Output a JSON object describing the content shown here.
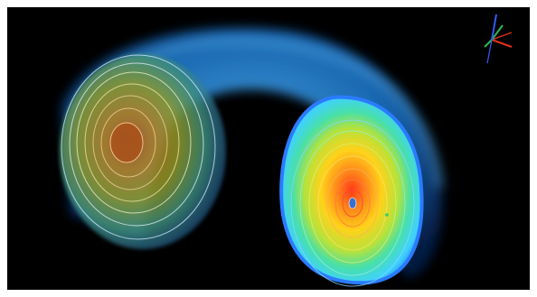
{
  "viewer": {
    "background_color": "#000000",
    "page_border_color": "#ffffff",
    "object": "torus-volume-render-with-contour-slices",
    "colormap": [
      "#1a3cff",
      "#1e9bff",
      "#3fd1ff",
      "#48e0a8",
      "#b8e23a",
      "#ffd21a",
      "#ff8a1a",
      "#ff3a1a"
    ],
    "axes_triad": {
      "x_axis_color": "#e0321e",
      "y_axis_color": "#2fb84a",
      "z_axis_color": "#2f5cff"
    }
  }
}
